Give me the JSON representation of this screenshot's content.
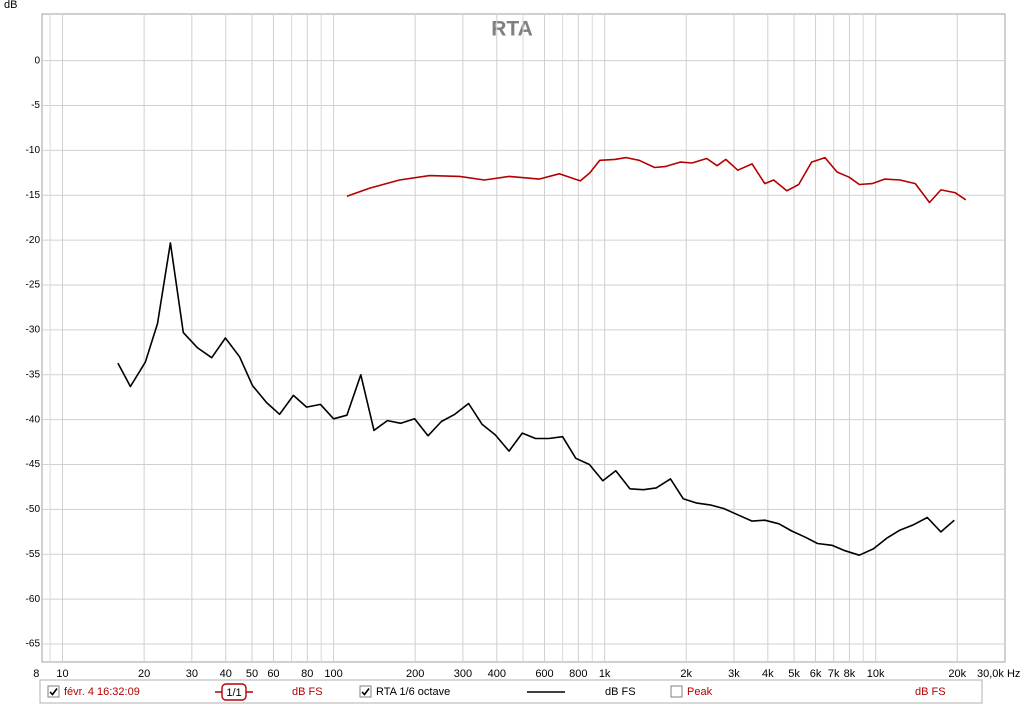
{
  "chart_data": {
    "type": "line",
    "title": "RTA",
    "y_label": "dB",
    "log_x": true,
    "grid": true,
    "xlim": [
      8.4,
      30000
    ],
    "xticks": [
      8,
      10,
      20,
      30,
      40,
      50,
      60,
      80,
      100,
      200,
      300,
      400,
      600,
      800,
      {
        "value": 1000,
        "label": "1k"
      },
      {
        "value": 2000,
        "label": "2k"
      },
      {
        "value": 3000,
        "label": "3k"
      },
      {
        "value": 4000,
        "label": "4k"
      },
      {
        "value": 5000,
        "label": "5k"
      },
      {
        "value": 6000,
        "label": "6k"
      },
      {
        "value": 7000,
        "label": "7k"
      },
      {
        "value": 8000,
        "label": "8k"
      },
      {
        "value": 10000,
        "label": "10k"
      },
      {
        "value": 20000,
        "label": "20k"
      },
      {
        "value": 30000,
        "label": "30,0k Hz"
      }
    ],
    "xminorticks": [
      9,
      70,
      90,
      500,
      700,
      900,
      9000
    ],
    "ylim": [
      -67,
      5.2
    ],
    "yticks": [
      0,
      -5,
      -10,
      -15,
      -20,
      -25,
      -30,
      -35,
      -40,
      -45,
      -50,
      -55,
      -60,
      -65
    ],
    "series": [
      {
        "name": "févr. 4 16:32:09",
        "color": "#b40000",
        "checked": true,
        "marker_label": "1/1",
        "unit": "dB FS",
        "x": [
          112,
          136,
          175,
          226,
          292,
          360,
          445,
          573,
          680,
          813,
          882,
          960,
          1090,
          1200,
          1340,
          1530,
          1670,
          1900,
          2100,
          2380,
          2600,
          2800,
          3100,
          3500,
          3900,
          4200,
          4700,
          5200,
          5800,
          6500,
          7200,
          8000,
          8700,
          9700,
          10800,
          12300,
          14000,
          15800,
          17400,
          19600,
          21500
        ],
        "values": [
          -15.1,
          -14.2,
          -13.3,
          -12.8,
          -12.9,
          -13.3,
          -12.9,
          -13.2,
          -12.6,
          -13.4,
          -12.5,
          -11.1,
          -11.0,
          -10.8,
          -11.1,
          -11.9,
          -11.8,
          -11.3,
          -11.4,
          -10.9,
          -11.7,
          -11.0,
          -12.2,
          -11.5,
          -13.7,
          -13.3,
          -14.5,
          -13.8,
          -11.3,
          -10.8,
          -12.4,
          -13.0,
          -13.8,
          -13.7,
          -13.2,
          -13.3,
          -13.7,
          -15.8,
          -14.4,
          -14.7,
          -15.5
        ]
      },
      {
        "name": "RTA 1/6 octave",
        "color": "#000000",
        "checked": true,
        "unit": "dB FS",
        "x": [
          16,
          17.8,
          20.2,
          22.4,
          25,
          27.9,
          31.5,
          35.5,
          39.9,
          45,
          50.2,
          56.6,
          63.2,
          71.1,
          79.5,
          89.5,
          100,
          112,
          126,
          141,
          158,
          177,
          199,
          223,
          250,
          280,
          315,
          353,
          395,
          444,
          497,
          556,
          622,
          700,
          783,
          879,
          985,
          1100,
          1240,
          1390,
          1550,
          1750,
          1950,
          2190,
          2450,
          2750,
          3100,
          3500,
          3900,
          4400,
          4900,
          5500,
          6100,
          6900,
          7700,
          8700,
          9800,
          11000,
          12300,
          13800,
          15500,
          17400,
          19500
        ],
        "values": [
          -33.7,
          -36.3,
          -33.6,
          -29.3,
          -20.3,
          -30.3,
          -32.0,
          -33.1,
          -30.9,
          -33.0,
          -36.2,
          -38.1,
          -39.4,
          -37.3,
          -38.6,
          -38.3,
          -39.9,
          -39.5,
          -35.0,
          -41.2,
          -40.1,
          -40.4,
          -39.9,
          -41.8,
          -40.2,
          -39.4,
          -38.2,
          -40.5,
          -41.7,
          -43.5,
          -41.5,
          -42.1,
          -42.1,
          -41.9,
          -44.3,
          -45.0,
          -46.8,
          -45.7,
          -47.7,
          -47.8,
          -47.6,
          -46.6,
          -48.8,
          -49.3,
          -49.5,
          -49.9,
          -50.6,
          -51.3,
          -51.2,
          -51.6,
          -52.4,
          -53.1,
          -53.8,
          -54.0,
          -54.6,
          -55.1,
          -54.4,
          -53.2,
          -52.3,
          -51.7,
          -50.9,
          -52.5,
          -51.2
        ]
      }
    ],
    "extra_legend": {
      "name": "Peak",
      "color": "#b40000",
      "checked": false,
      "unit": "dB FS"
    }
  }
}
